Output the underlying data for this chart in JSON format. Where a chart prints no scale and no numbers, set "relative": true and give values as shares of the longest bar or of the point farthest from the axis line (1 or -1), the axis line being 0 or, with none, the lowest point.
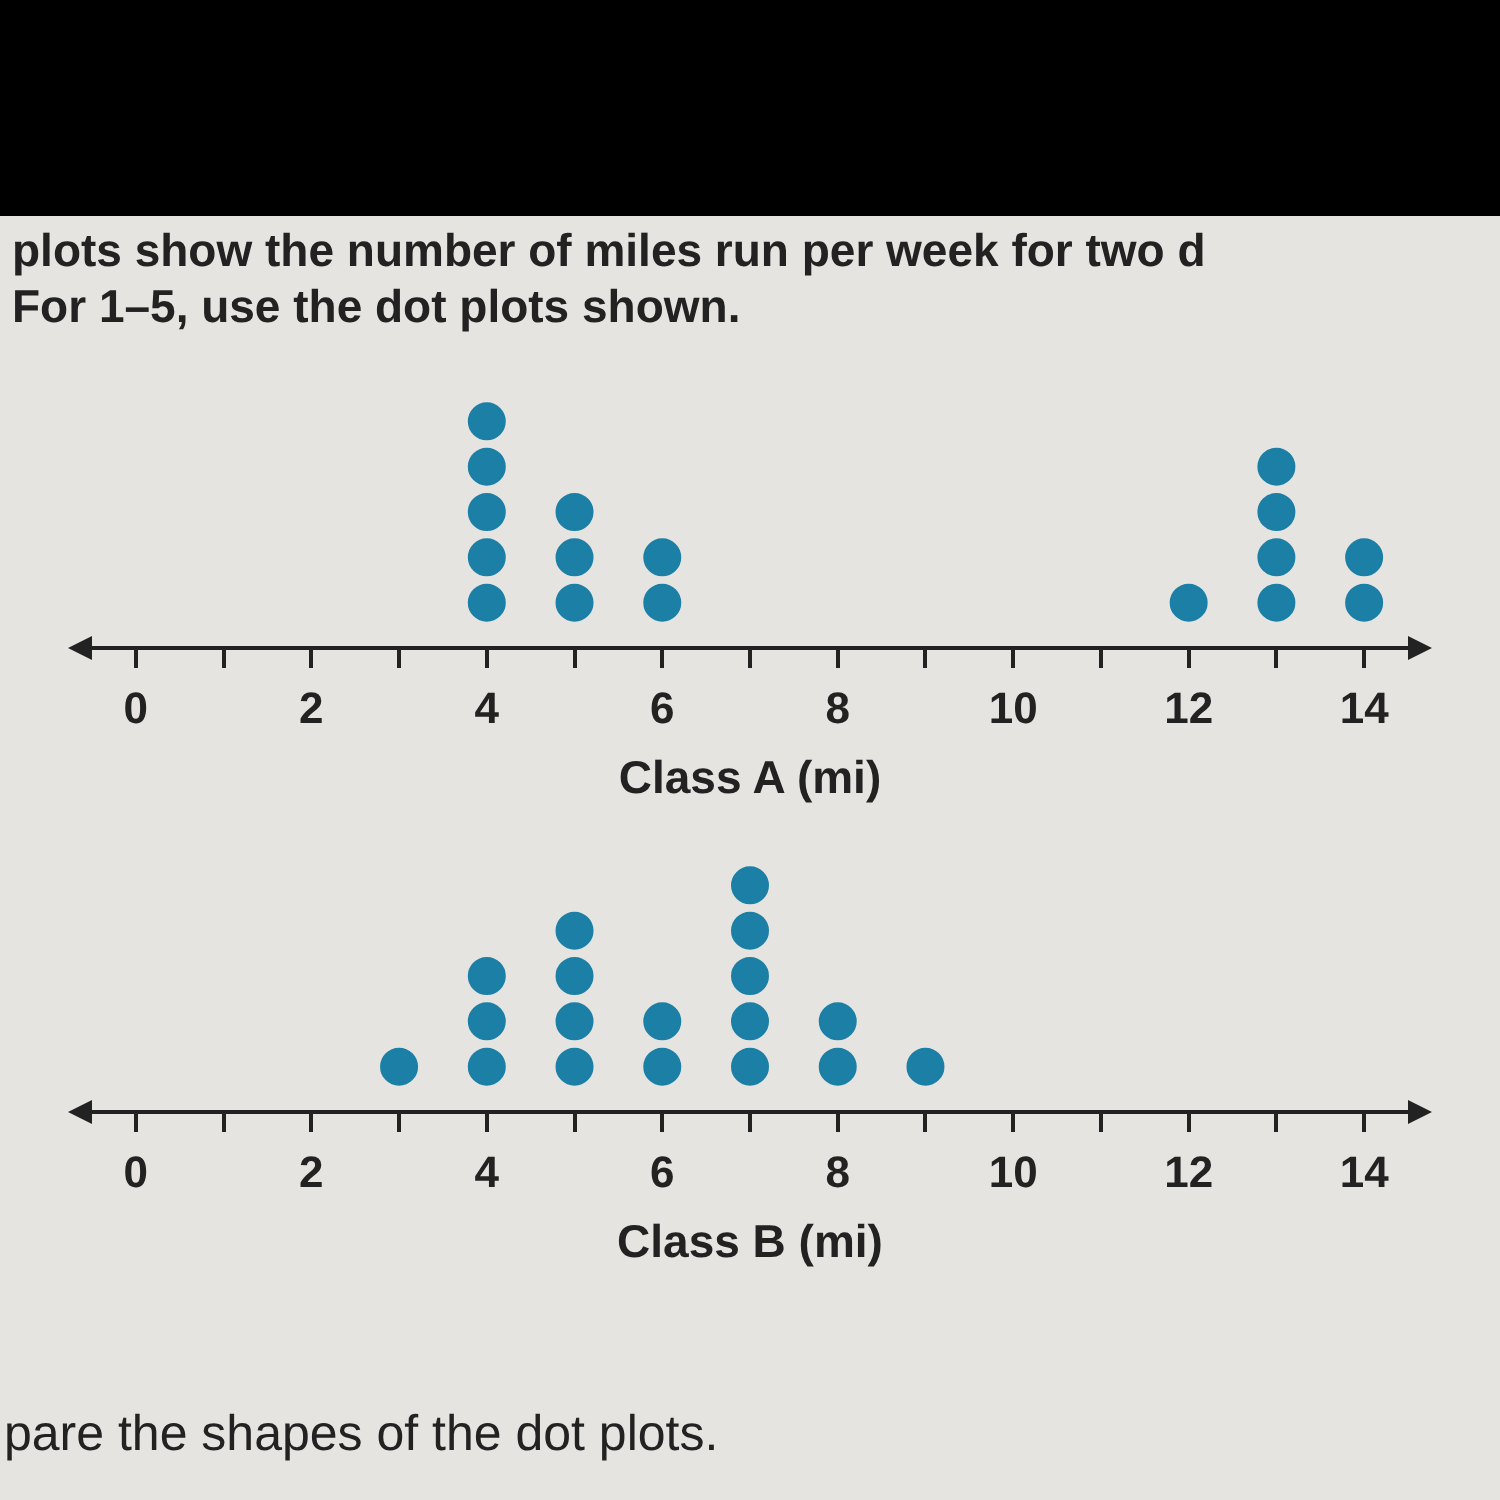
{
  "chart_data": [
    {
      "type": "scatter",
      "title": "plots show the number of miles run per week for two d",
      "subtitle": "For 1–5, use the dot plots shown.",
      "xlabel": "Class A (mi)",
      "color": "#1b7fa6",
      "marker": "circle",
      "tick_labels": "x",
      "relative": true,
      "xlim": [
        -0.5,
        14.5
      ],
      "xticks": [
        0,
        {
          "value": 1,
          "label": null
        },
        2,
        {
          "value": 3,
          "label": null
        },
        4,
        {
          "value": 5,
          "label": null
        },
        6,
        {
          "value": 7,
          "label": null
        },
        8,
        {
          "value": 9,
          "label": null
        },
        10,
        {
          "value": 11,
          "label": null
        },
        12,
        {
          "value": 13,
          "label": null
        },
        14
      ],
      "x": [
        4,
        4,
        4,
        4,
        4,
        5,
        5,
        5,
        6,
        6,
        12,
        13,
        13,
        13,
        13,
        14,
        14
      ],
      "values": [
        0.2,
        0.4,
        0.6,
        0.8,
        1,
        0.2,
        0.4,
        0.6,
        0.2,
        0.4,
        0.2,
        0.2,
        0.4,
        0.6,
        0.8,
        0.2,
        0.4
      ]
    },
    {
      "type": "scatter",
      "xlabel": "Class B (mi)",
      "color": "#1b7fa6",
      "marker": "circle",
      "tick_labels": "x",
      "relative": true,
      "xlim": [
        -0.5,
        14.5
      ],
      "xticks": [
        0,
        {
          "value": 1,
          "label": null
        },
        2,
        {
          "value": 3,
          "label": null
        },
        4,
        {
          "value": 5,
          "label": null
        },
        6,
        {
          "value": 7,
          "label": null
        },
        8,
        {
          "value": 9,
          "label": null
        },
        10,
        {
          "value": 11,
          "label": null
        },
        12,
        {
          "value": 13,
          "label": null
        },
        14
      ],
      "x": [
        3,
        4,
        4,
        4,
        5,
        5,
        5,
        5,
        6,
        6,
        7,
        7,
        7,
        7,
        7,
        8,
        8,
        9
      ],
      "values": [
        0.2,
        0.2,
        0.4,
        0.6,
        0.2,
        0.4,
        0.6,
        0.8,
        0.2,
        0.4,
        0.2,
        0.4,
        0.6,
        0.8,
        1,
        0.2,
        0.4,
        0.2
      ],
      "annotations": [
        "pare the shapes of the dot plots."
      ]
    }
  ]
}
